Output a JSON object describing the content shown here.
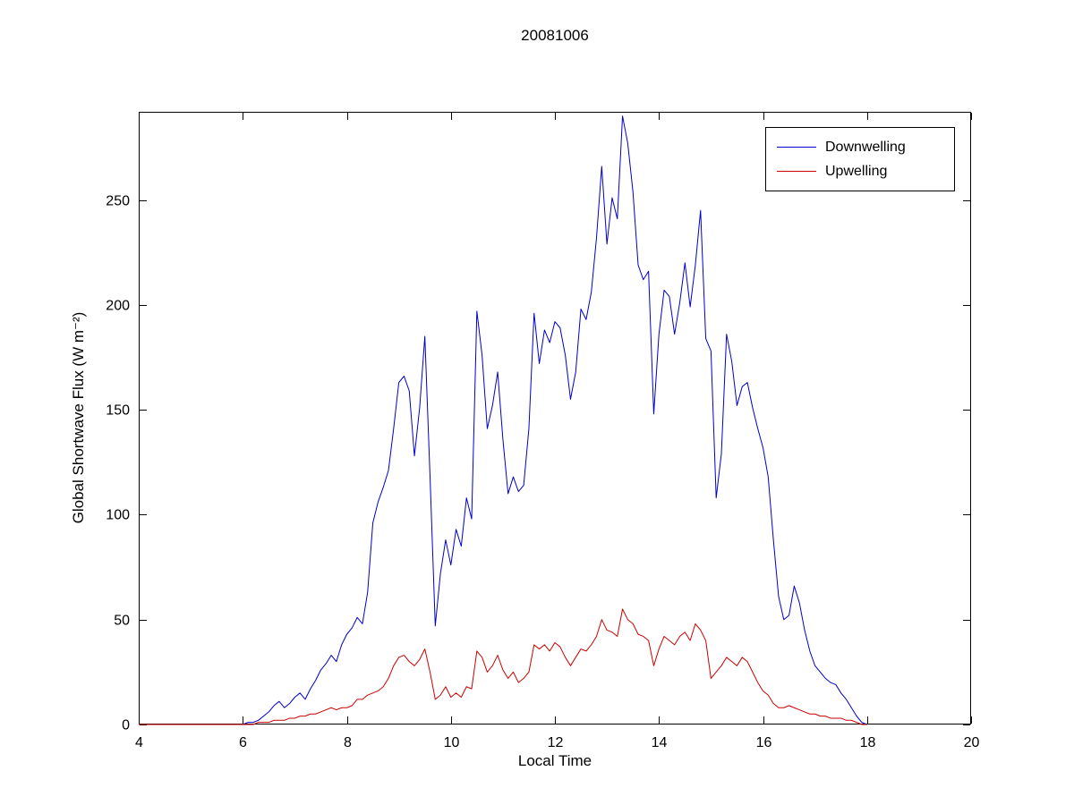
{
  "figure": {
    "title": "20081006"
  },
  "chart_data": {
    "type": "line",
    "title": "20081006",
    "xlabel": "Local Time",
    "ylabel": "Global Shortwave Flux (W m⁻²)",
    "xlim": [
      4,
      20
    ],
    "ylim": [
      0,
      292
    ],
    "xticks": [
      4,
      6,
      8,
      10,
      12,
      14,
      16,
      18,
      20
    ],
    "yticks": [
      0,
      50,
      100,
      150,
      200,
      250
    ],
    "grid": false,
    "legend_position": "top-right",
    "axis_color": "#000000",
    "background": "#ffffff",
    "x": [
      4.0,
      5.0,
      5.5,
      5.9,
      6.0,
      6.1,
      6.2,
      6.3,
      6.4,
      6.5,
      6.6,
      6.7,
      6.8,
      6.9,
      7.0,
      7.1,
      7.2,
      7.3,
      7.4,
      7.5,
      7.6,
      7.7,
      7.8,
      7.9,
      8.0,
      8.1,
      8.2,
      8.3,
      8.4,
      8.5,
      8.6,
      8.7,
      8.8,
      8.9,
      9.0,
      9.1,
      9.2,
      9.3,
      9.4,
      9.5,
      9.6,
      9.7,
      9.8,
      9.9,
      10.0,
      10.1,
      10.2,
      10.3,
      10.4,
      10.5,
      10.6,
      10.7,
      10.8,
      10.9,
      11.0,
      11.1,
      11.2,
      11.3,
      11.4,
      11.5,
      11.6,
      11.7,
      11.8,
      11.9,
      12.0,
      12.1,
      12.2,
      12.3,
      12.4,
      12.5,
      12.6,
      12.7,
      12.8,
      12.9,
      13.0,
      13.1,
      13.2,
      13.3,
      13.4,
      13.5,
      13.6,
      13.7,
      13.8,
      13.9,
      14.0,
      14.1,
      14.2,
      14.3,
      14.4,
      14.5,
      14.6,
      14.7,
      14.8,
      14.9,
      15.0,
      15.1,
      15.2,
      15.3,
      15.4,
      15.5,
      15.6,
      15.7,
      15.8,
      15.9,
      16.0,
      16.1,
      16.2,
      16.3,
      16.4,
      16.5,
      16.6,
      16.7,
      16.8,
      16.9,
      17.0,
      17.1,
      17.2,
      17.3,
      17.4,
      17.5,
      17.6,
      17.7,
      17.8,
      17.9,
      18.0
    ],
    "series": [
      {
        "name": "Downwelling",
        "color": "#0000cc",
        "values": [
          0,
          0,
          0,
          0,
          0,
          1,
          1,
          2,
          4,
          6,
          9,
          11,
          8,
          10,
          13,
          15,
          12,
          17,
          21,
          26,
          29,
          33,
          30,
          38,
          43,
          46,
          51,
          48,
          63,
          96,
          106,
          113,
          121,
          141,
          163,
          166,
          159,
          128,
          151,
          185,
          118,
          47,
          72,
          88,
          76,
          93,
          85,
          108,
          98,
          197,
          176,
          141,
          152,
          168,
          136,
          110,
          118,
          111,
          114,
          141,
          196,
          172,
          188,
          182,
          192,
          189,
          176,
          155,
          168,
          198,
          193,
          206,
          232,
          266,
          229,
          251,
          241,
          290,
          277,
          254,
          219,
          212,
          216,
          148,
          186,
          207,
          204,
          186,
          201,
          220,
          199,
          219,
          245,
          184,
          178,
          108,
          129,
          186,
          173,
          152,
          161,
          163,
          151,
          141,
          132,
          118,
          88,
          61,
          50,
          52,
          66,
          58,
          45,
          35,
          28,
          25,
          22,
          20,
          19,
          15,
          12,
          8,
          4,
          1,
          0
        ]
      },
      {
        "name": "Upwelling",
        "color": "#cc0000",
        "values": [
          0,
          0,
          0,
          0,
          0,
          0,
          0,
          1,
          1,
          1,
          2,
          2,
          2,
          3,
          3,
          4,
          4,
          5,
          5,
          6,
          7,
          8,
          7,
          8,
          8,
          9,
          12,
          12,
          14,
          15,
          16,
          18,
          22,
          28,
          32,
          33,
          30,
          28,
          31,
          36,
          25,
          12,
          14,
          18,
          13,
          15,
          13,
          18,
          17,
          35,
          32,
          25,
          28,
          33,
          26,
          22,
          25,
          20,
          22,
          25,
          38,
          36,
          38,
          35,
          39,
          37,
          32,
          28,
          32,
          36,
          35,
          38,
          42,
          50,
          45,
          44,
          42,
          55,
          50,
          48,
          43,
          42,
          40,
          28,
          36,
          42,
          40,
          38,
          42,
          44,
          40,
          48,
          45,
          40,
          22,
          25,
          28,
          32,
          30,
          28,
          32,
          30,
          25,
          20,
          16,
          14,
          10,
          8,
          8,
          9,
          8,
          7,
          6,
          5,
          5,
          4,
          4,
          3,
          3,
          3,
          2,
          2,
          1,
          0,
          0
        ]
      }
    ]
  }
}
